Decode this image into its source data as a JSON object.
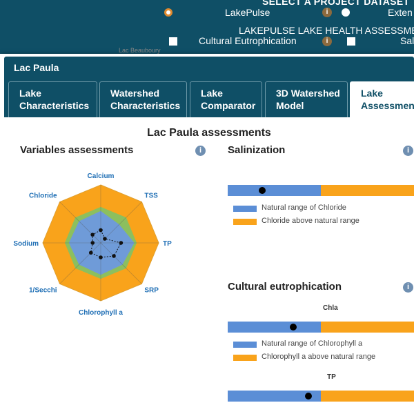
{
  "background": {
    "header_line1": "SELECT A PROJECT DATASET",
    "dataset_option1": "LakePulse",
    "dataset_option2": "Exten",
    "header_line2": "LAKEPULSE LAKE HEALTH ASSESSME",
    "assessment_option1": "Cultural Eutrophication",
    "assessment_option2": "Sal",
    "info_glyph": "i",
    "map_label": "Lac Beauboury"
  },
  "modal": {
    "title": "Lac Paula",
    "tabs": [
      {
        "line1": "Lake",
        "line2": "Characteristics"
      },
      {
        "line1": "Watershed",
        "line2": "Characteristics"
      },
      {
        "line1": "Lake",
        "line2": "Comparator"
      },
      {
        "line1": "3D Watershed",
        "line2": "Model"
      },
      {
        "line1": "Lake",
        "line2": "Assessments"
      }
    ],
    "active_tab": 4
  },
  "content": {
    "main_title": "Lac Paula assessments",
    "info_glyph": "i",
    "variables": {
      "title": "Variables assessments"
    },
    "salinization": {
      "title": "Salinization",
      "natural_fraction": 0.5,
      "marker_fraction": 0.185,
      "legend_natural": "Natural range of Chloride",
      "legend_above": "Chloride above natural range"
    },
    "eutrophication": {
      "title": "Cultural eutrophication",
      "bars": [
        {
          "label": "Chla",
          "natural_fraction": 0.5,
          "marker_fraction": 0.35
        },
        {
          "label": "TP",
          "natural_fraction": 0.5,
          "marker_fraction": 0.435
        }
      ],
      "legend_natural": "Natural range of Chlorophyll a",
      "legend_above": "Chlorophyll a above natural range"
    },
    "colors": {
      "natural": "#5b8ed6",
      "above": "#f9a31b",
      "green_band": "#8cbf5e",
      "radar_label": "#1f6fb5",
      "header": "#0f4f66"
    }
  },
  "chart_data": {
    "type": "radar",
    "title": "",
    "axes": [
      "Calcium",
      "TSS",
      "TP",
      "SRP",
      "Chlorophyll a",
      "1/Secchi",
      "Sodium",
      "Chloride"
    ],
    "outer_level": 1.0,
    "green_level": [
      0.62,
      0.62,
      0.62,
      0.62,
      0.62,
      0.62,
      0.62,
      0.62
    ],
    "blue_level": [
      0.55,
      0.45,
      0.58,
      0.53,
      0.55,
      0.53,
      0.55,
      0.53
    ],
    "series": [
      {
        "values": [
          0.22,
          0.1,
          0.35,
          0.32,
          0.25,
          0.24,
          0.14,
          0.2
        ]
      }
    ]
  }
}
